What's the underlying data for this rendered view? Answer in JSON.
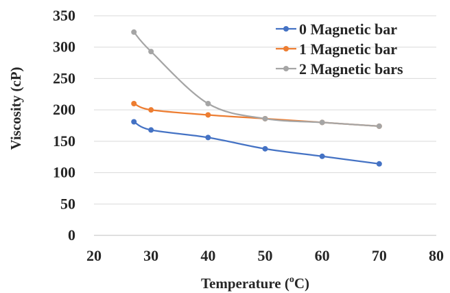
{
  "chart_data": {
    "type": "scatter",
    "title": "",
    "xlabel": "Temperature (°C)",
    "xlabel_parts": {
      "before": "Temperature (",
      "sup": "o",
      "after": "C)"
    },
    "ylabel": "Viscosity (cP)",
    "xlim": [
      20,
      80
    ],
    "ylim": [
      0,
      350
    ],
    "xticks": [
      20,
      30,
      40,
      50,
      60,
      70,
      80
    ],
    "yticks": [
      0,
      50,
      100,
      150,
      200,
      250,
      300,
      350
    ],
    "grid": "horizontal",
    "legend_position": "top-right",
    "smooth_lines": true,
    "series": [
      {
        "name": "0 Magnetic bar",
        "color": "#4472C4",
        "x": [
          27,
          30,
          40,
          50,
          60,
          70
        ],
        "y": [
          181,
          168,
          156,
          138,
          126,
          114
        ]
      },
      {
        "name": "1 Magnetic bar",
        "color": "#ED7D31",
        "x": [
          27,
          30,
          40,
          50,
          60,
          70
        ],
        "y": [
          210,
          200,
          192,
          186,
          180,
          174
        ]
      },
      {
        "name": "2 Magnetic bars",
        "color": "#A5A5A5",
        "x": [
          27,
          30,
          40,
          50,
          60,
          70
        ],
        "y": [
          324,
          293,
          210,
          186,
          180,
          174
        ]
      }
    ]
  }
}
